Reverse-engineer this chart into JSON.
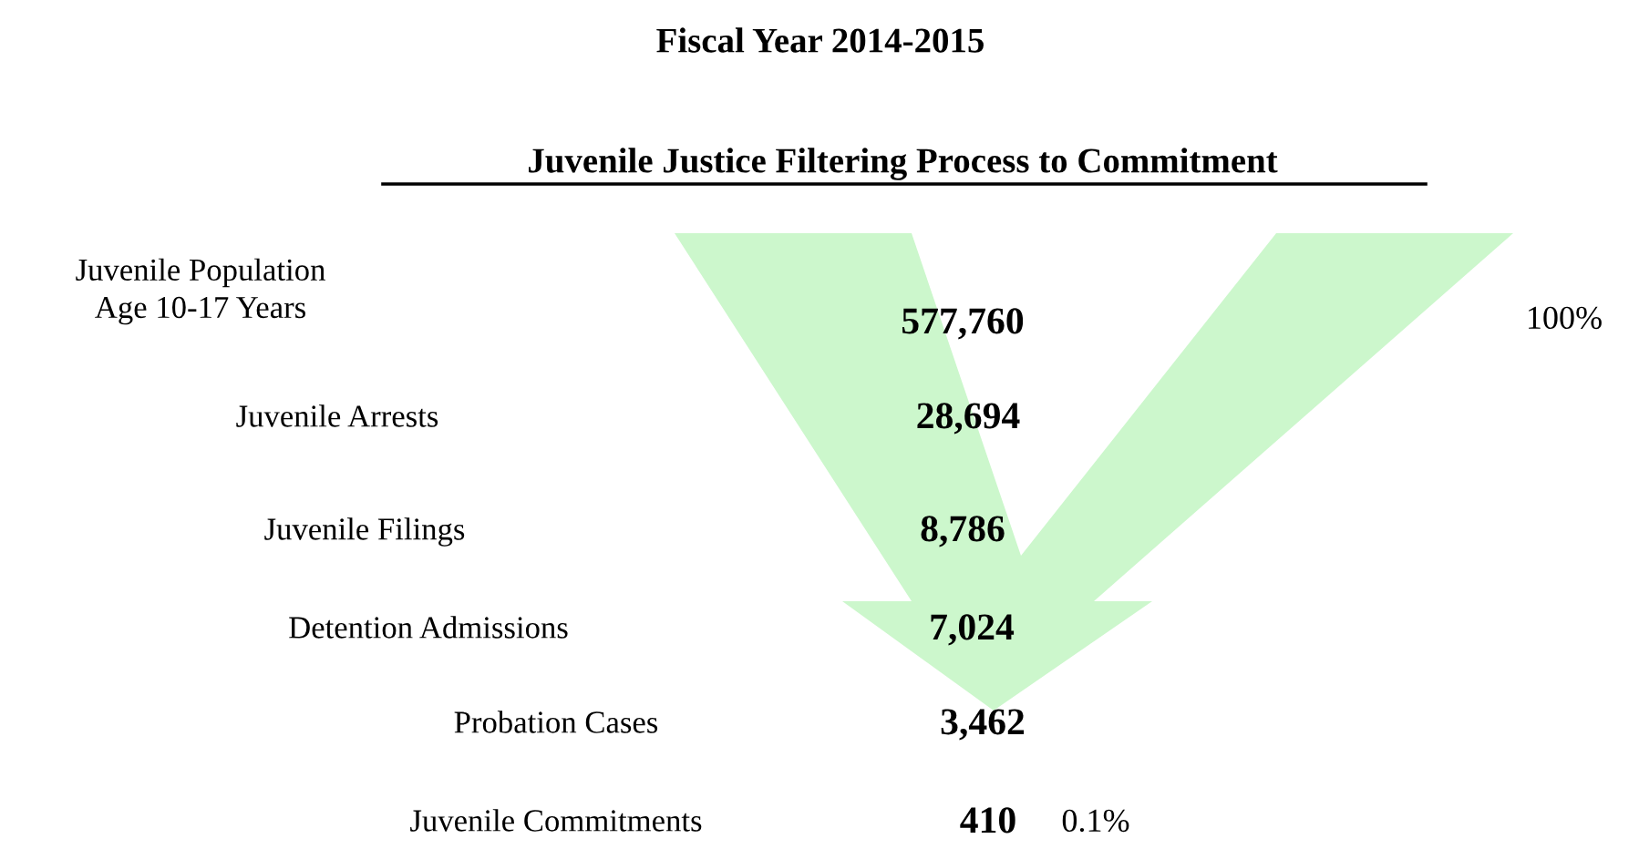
{
  "chart_data": {
    "type": "other",
    "title": "Fiscal Year 2014-2015",
    "subtitle": "Juvenile Justice Filtering Process to Commitment",
    "categories": [
      "Juvenile Population\nAge 10-17 Years",
      "Juvenile Arrests",
      "Juvenile Filings",
      "Detention Admissions",
      "Probation Cases",
      "Juvenile Commitments"
    ],
    "values": [
      577760,
      28694,
      8786,
      7024,
      3462,
      410
    ],
    "value_labels": [
      "577,760",
      "28,694",
      "8,786",
      "7,024",
      "3,462",
      "410"
    ],
    "annotations": [
      "100%",
      "0.1%"
    ]
  }
}
